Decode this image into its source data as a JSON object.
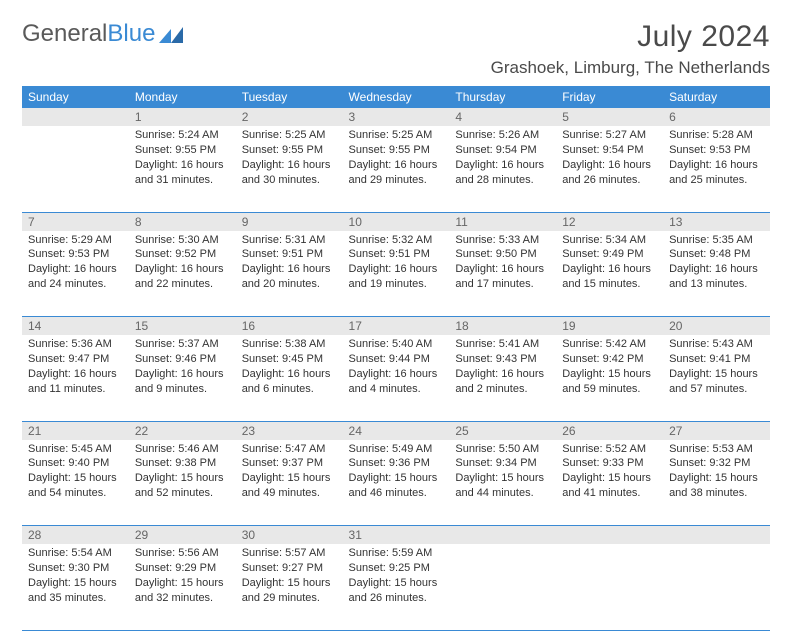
{
  "logo": {
    "text1": "General",
    "text2": "Blue"
  },
  "title": "July 2024",
  "location": "Grashoek, Limburg, The Netherlands",
  "weekdays": [
    "Sunday",
    "Monday",
    "Tuesday",
    "Wednesday",
    "Thursday",
    "Friday",
    "Saturday"
  ],
  "colors": {
    "header_bg": "#3a8ad4",
    "header_text": "#ffffff",
    "daynum_bg": "#e8e8e8",
    "border": "#3a8ad4",
    "text": "#333333",
    "title_text": "#4a4a4a"
  },
  "weeks": [
    [
      null,
      {
        "day": "1",
        "sunrise": "Sunrise: 5:24 AM",
        "sunset": "Sunset: 9:55 PM",
        "daylight": "Daylight: 16 hours and 31 minutes."
      },
      {
        "day": "2",
        "sunrise": "Sunrise: 5:25 AM",
        "sunset": "Sunset: 9:55 PM",
        "daylight": "Daylight: 16 hours and 30 minutes."
      },
      {
        "day": "3",
        "sunrise": "Sunrise: 5:25 AM",
        "sunset": "Sunset: 9:55 PM",
        "daylight": "Daylight: 16 hours and 29 minutes."
      },
      {
        "day": "4",
        "sunrise": "Sunrise: 5:26 AM",
        "sunset": "Sunset: 9:54 PM",
        "daylight": "Daylight: 16 hours and 28 minutes."
      },
      {
        "day": "5",
        "sunrise": "Sunrise: 5:27 AM",
        "sunset": "Sunset: 9:54 PM",
        "daylight": "Daylight: 16 hours and 26 minutes."
      },
      {
        "day": "6",
        "sunrise": "Sunrise: 5:28 AM",
        "sunset": "Sunset: 9:53 PM",
        "daylight": "Daylight: 16 hours and 25 minutes."
      }
    ],
    [
      {
        "day": "7",
        "sunrise": "Sunrise: 5:29 AM",
        "sunset": "Sunset: 9:53 PM",
        "daylight": "Daylight: 16 hours and 24 minutes."
      },
      {
        "day": "8",
        "sunrise": "Sunrise: 5:30 AM",
        "sunset": "Sunset: 9:52 PM",
        "daylight": "Daylight: 16 hours and 22 minutes."
      },
      {
        "day": "9",
        "sunrise": "Sunrise: 5:31 AM",
        "sunset": "Sunset: 9:51 PM",
        "daylight": "Daylight: 16 hours and 20 minutes."
      },
      {
        "day": "10",
        "sunrise": "Sunrise: 5:32 AM",
        "sunset": "Sunset: 9:51 PM",
        "daylight": "Daylight: 16 hours and 19 minutes."
      },
      {
        "day": "11",
        "sunrise": "Sunrise: 5:33 AM",
        "sunset": "Sunset: 9:50 PM",
        "daylight": "Daylight: 16 hours and 17 minutes."
      },
      {
        "day": "12",
        "sunrise": "Sunrise: 5:34 AM",
        "sunset": "Sunset: 9:49 PM",
        "daylight": "Daylight: 16 hours and 15 minutes."
      },
      {
        "day": "13",
        "sunrise": "Sunrise: 5:35 AM",
        "sunset": "Sunset: 9:48 PM",
        "daylight": "Daylight: 16 hours and 13 minutes."
      }
    ],
    [
      {
        "day": "14",
        "sunrise": "Sunrise: 5:36 AM",
        "sunset": "Sunset: 9:47 PM",
        "daylight": "Daylight: 16 hours and 11 minutes."
      },
      {
        "day": "15",
        "sunrise": "Sunrise: 5:37 AM",
        "sunset": "Sunset: 9:46 PM",
        "daylight": "Daylight: 16 hours and 9 minutes."
      },
      {
        "day": "16",
        "sunrise": "Sunrise: 5:38 AM",
        "sunset": "Sunset: 9:45 PM",
        "daylight": "Daylight: 16 hours and 6 minutes."
      },
      {
        "day": "17",
        "sunrise": "Sunrise: 5:40 AM",
        "sunset": "Sunset: 9:44 PM",
        "daylight": "Daylight: 16 hours and 4 minutes."
      },
      {
        "day": "18",
        "sunrise": "Sunrise: 5:41 AM",
        "sunset": "Sunset: 9:43 PM",
        "daylight": "Daylight: 16 hours and 2 minutes."
      },
      {
        "day": "19",
        "sunrise": "Sunrise: 5:42 AM",
        "sunset": "Sunset: 9:42 PM",
        "daylight": "Daylight: 15 hours and 59 minutes."
      },
      {
        "day": "20",
        "sunrise": "Sunrise: 5:43 AM",
        "sunset": "Sunset: 9:41 PM",
        "daylight": "Daylight: 15 hours and 57 minutes."
      }
    ],
    [
      {
        "day": "21",
        "sunrise": "Sunrise: 5:45 AM",
        "sunset": "Sunset: 9:40 PM",
        "daylight": "Daylight: 15 hours and 54 minutes."
      },
      {
        "day": "22",
        "sunrise": "Sunrise: 5:46 AM",
        "sunset": "Sunset: 9:38 PM",
        "daylight": "Daylight: 15 hours and 52 minutes."
      },
      {
        "day": "23",
        "sunrise": "Sunrise: 5:47 AM",
        "sunset": "Sunset: 9:37 PM",
        "daylight": "Daylight: 15 hours and 49 minutes."
      },
      {
        "day": "24",
        "sunrise": "Sunrise: 5:49 AM",
        "sunset": "Sunset: 9:36 PM",
        "daylight": "Daylight: 15 hours and 46 minutes."
      },
      {
        "day": "25",
        "sunrise": "Sunrise: 5:50 AM",
        "sunset": "Sunset: 9:34 PM",
        "daylight": "Daylight: 15 hours and 44 minutes."
      },
      {
        "day": "26",
        "sunrise": "Sunrise: 5:52 AM",
        "sunset": "Sunset: 9:33 PM",
        "daylight": "Daylight: 15 hours and 41 minutes."
      },
      {
        "day": "27",
        "sunrise": "Sunrise: 5:53 AM",
        "sunset": "Sunset: 9:32 PM",
        "daylight": "Daylight: 15 hours and 38 minutes."
      }
    ],
    [
      {
        "day": "28",
        "sunrise": "Sunrise: 5:54 AM",
        "sunset": "Sunset: 9:30 PM",
        "daylight": "Daylight: 15 hours and 35 minutes."
      },
      {
        "day": "29",
        "sunrise": "Sunrise: 5:56 AM",
        "sunset": "Sunset: 9:29 PM",
        "daylight": "Daylight: 15 hours and 32 minutes."
      },
      {
        "day": "30",
        "sunrise": "Sunrise: 5:57 AM",
        "sunset": "Sunset: 9:27 PM",
        "daylight": "Daylight: 15 hours and 29 minutes."
      },
      {
        "day": "31",
        "sunrise": "Sunrise: 5:59 AM",
        "sunset": "Sunset: 9:25 PM",
        "daylight": "Daylight: 15 hours and 26 minutes."
      },
      null,
      null,
      null
    ]
  ]
}
